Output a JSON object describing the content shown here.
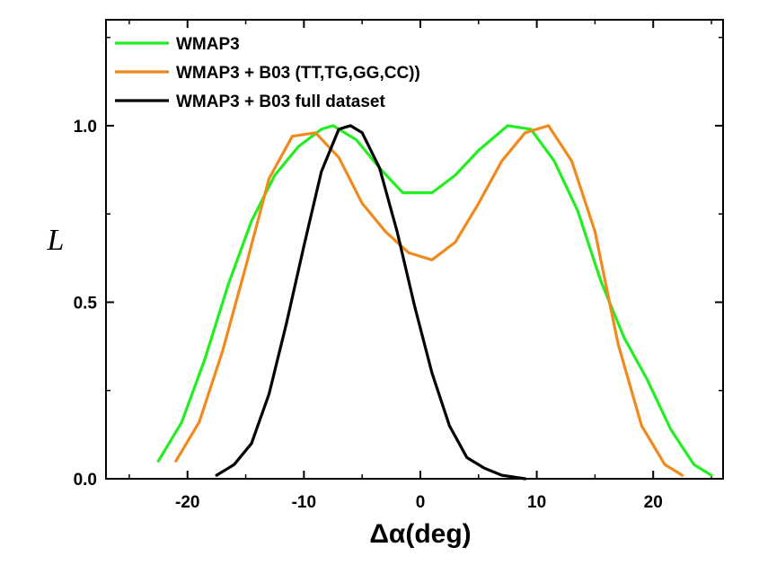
{
  "chart_data": {
    "type": "line",
    "title": "",
    "xlabel": "Δα(deg)",
    "ylabel": "L",
    "xlim": [
      -27,
      26
    ],
    "ylim": [
      0,
      1.3
    ],
    "xticks": [
      -20,
      -10,
      0,
      10,
      20
    ],
    "xtick_labels": [
      "-20",
      "-10",
      "0",
      "10",
      "20"
    ],
    "yticks": [
      0.0,
      0.5,
      1.0
    ],
    "ytick_labels": [
      "0.0",
      "0.5",
      "1.0"
    ],
    "grid": false,
    "legend_position": "top-left",
    "series": [
      {
        "name": "WMAP3",
        "color": "#22ee22",
        "x": [
          -22.5,
          -20.5,
          -18.5,
          -16.5,
          -14.5,
          -12.5,
          -10.5,
          -8.5,
          -7.5,
          -5.5,
          -3.5,
          -1.5,
          1.0,
          3.0,
          5.0,
          7.5,
          9.5,
          11.5,
          13.5,
          15.5,
          17.5,
          19.5,
          21.5,
          23.5,
          25.0
        ],
        "y": [
          0.05,
          0.16,
          0.34,
          0.55,
          0.73,
          0.86,
          0.94,
          0.99,
          1.0,
          0.96,
          0.88,
          0.81,
          0.81,
          0.86,
          0.93,
          1.0,
          0.99,
          0.9,
          0.76,
          0.56,
          0.4,
          0.28,
          0.14,
          0.04,
          0.01
        ]
      },
      {
        "name": "WMAP3 + B03 (TT,TG,GG,CC))",
        "color": "#f08a1e",
        "x": [
          -21.0,
          -19.0,
          -17.0,
          -15.0,
          -13.0,
          -11.0,
          -9.0,
          -7.0,
          -5.0,
          -3.0,
          -1.0,
          1.0,
          3.0,
          5.0,
          7.0,
          9.0,
          11.0,
          13.0,
          15.0,
          17.0,
          19.0,
          21.0,
          22.5
        ],
        "y": [
          0.05,
          0.16,
          0.36,
          0.6,
          0.85,
          0.97,
          0.98,
          0.91,
          0.78,
          0.7,
          0.64,
          0.62,
          0.67,
          0.78,
          0.9,
          0.98,
          1.0,
          0.9,
          0.7,
          0.38,
          0.15,
          0.04,
          0.01
        ]
      },
      {
        "name": "WMAP3 + B03 full dataset",
        "color": "#000000",
        "x": [
          -17.5,
          -16.0,
          -14.5,
          -13.0,
          -11.5,
          -10.0,
          -8.5,
          -7.0,
          -6.0,
          -5.0,
          -3.5,
          -2.0,
          -0.5,
          1.0,
          2.5,
          4.0,
          5.5,
          7.0,
          9.0
        ],
        "y": [
          0.01,
          0.04,
          0.1,
          0.24,
          0.44,
          0.66,
          0.87,
          0.99,
          1.0,
          0.98,
          0.88,
          0.7,
          0.49,
          0.3,
          0.15,
          0.06,
          0.03,
          0.01,
          0.0
        ]
      }
    ]
  }
}
